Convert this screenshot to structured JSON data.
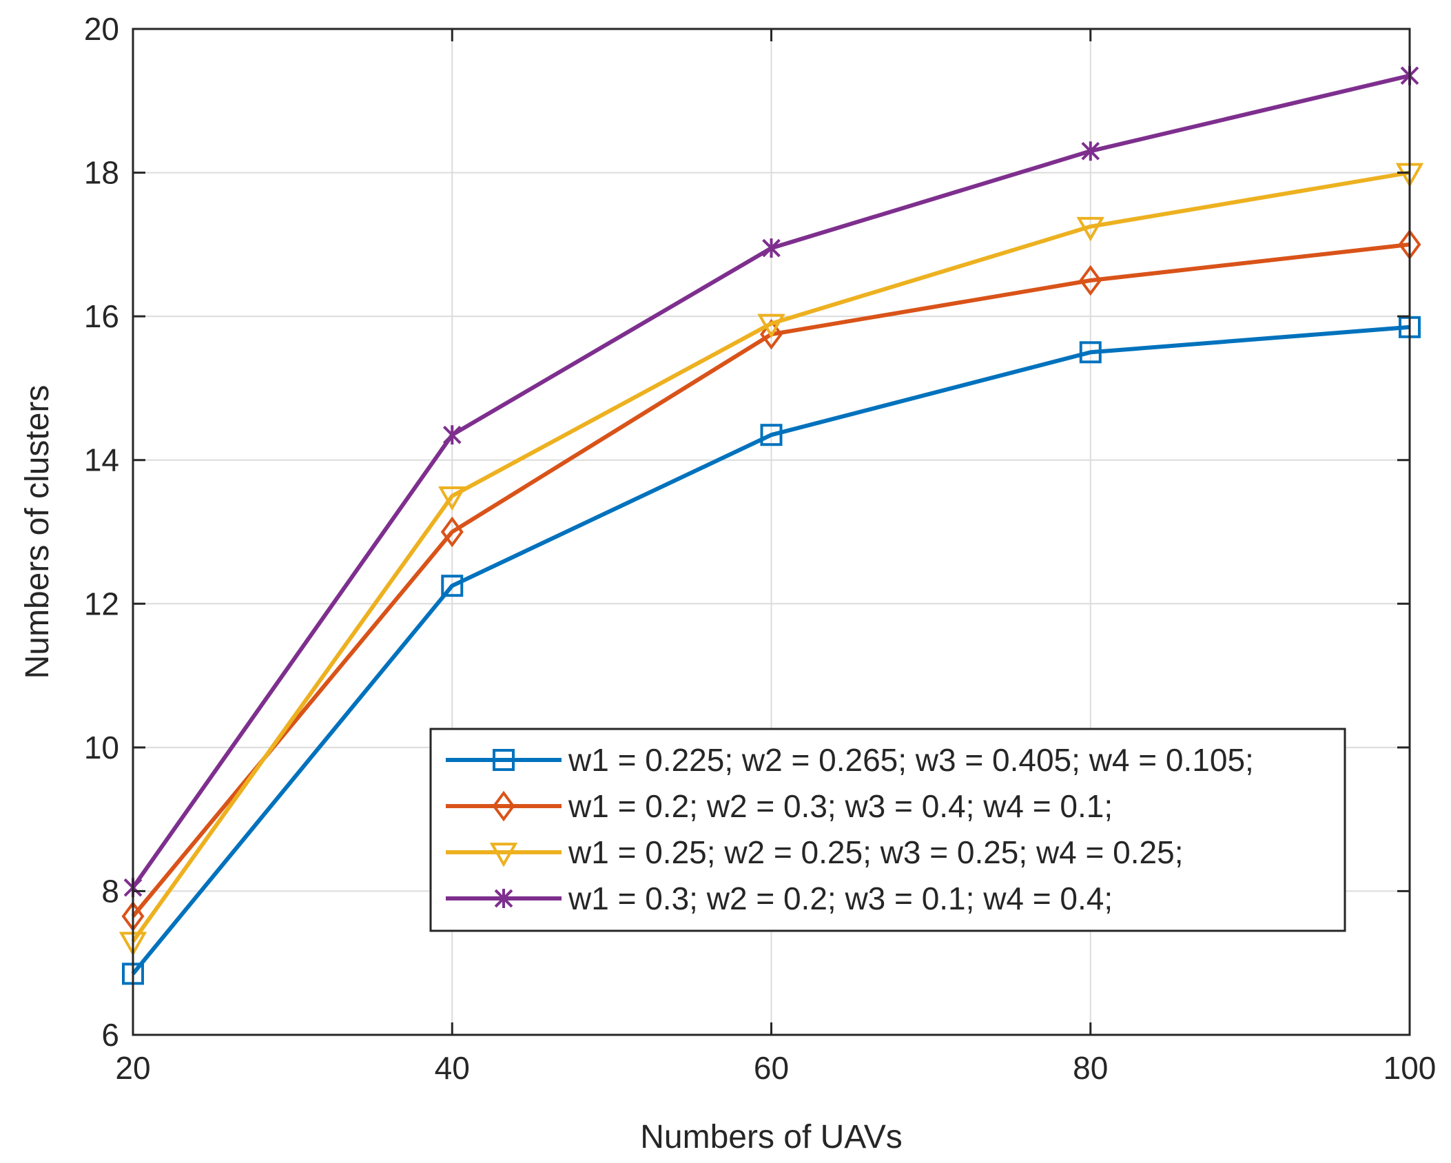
{
  "chart_data": {
    "type": "line",
    "title": "",
    "xlabel": "Numbers of UAVs",
    "ylabel": "Numbers of clusters",
    "x": [
      20,
      40,
      60,
      80,
      100
    ],
    "xlim": [
      20,
      100
    ],
    "ylim": [
      6,
      20
    ],
    "xticks": [
      "20",
      "40",
      "60",
      "80",
      "100"
    ],
    "yticks": [
      "6",
      "8",
      "10",
      "12",
      "14",
      "16",
      "18",
      "20"
    ],
    "grid": true,
    "legend_position": "bottom-right",
    "series": [
      {
        "name": "w1 = 0.225; w2 = 0.265; w3 = 0.405; w4 = 0.105;",
        "values": [
          6.85,
          12.25,
          14.35,
          15.5,
          15.85
        ],
        "color": "#0072BD",
        "marker": "square"
      },
      {
        "name": "w1 = 0.2; w2 = 0.3; w3 = 0.4; w4 = 0.1;",
        "values": [
          7.65,
          13.0,
          15.75,
          16.5,
          17.0
        ],
        "color": "#D95319",
        "marker": "diamond"
      },
      {
        "name": "w1 = 0.25; w2 = 0.25; w3 = 0.25; w4 = 0.25;",
        "values": [
          7.3,
          13.5,
          15.9,
          17.25,
          18.0
        ],
        "color": "#EDB120",
        "marker": "triangle-down"
      },
      {
        "name": "w1 = 0.3; w2 = 0.2; w3 = 0.1; w4 = 0.4;",
        "values": [
          8.05,
          14.35,
          16.95,
          18.3,
          19.35
        ],
        "color": "#7E2F8E",
        "marker": "asterisk"
      }
    ]
  }
}
